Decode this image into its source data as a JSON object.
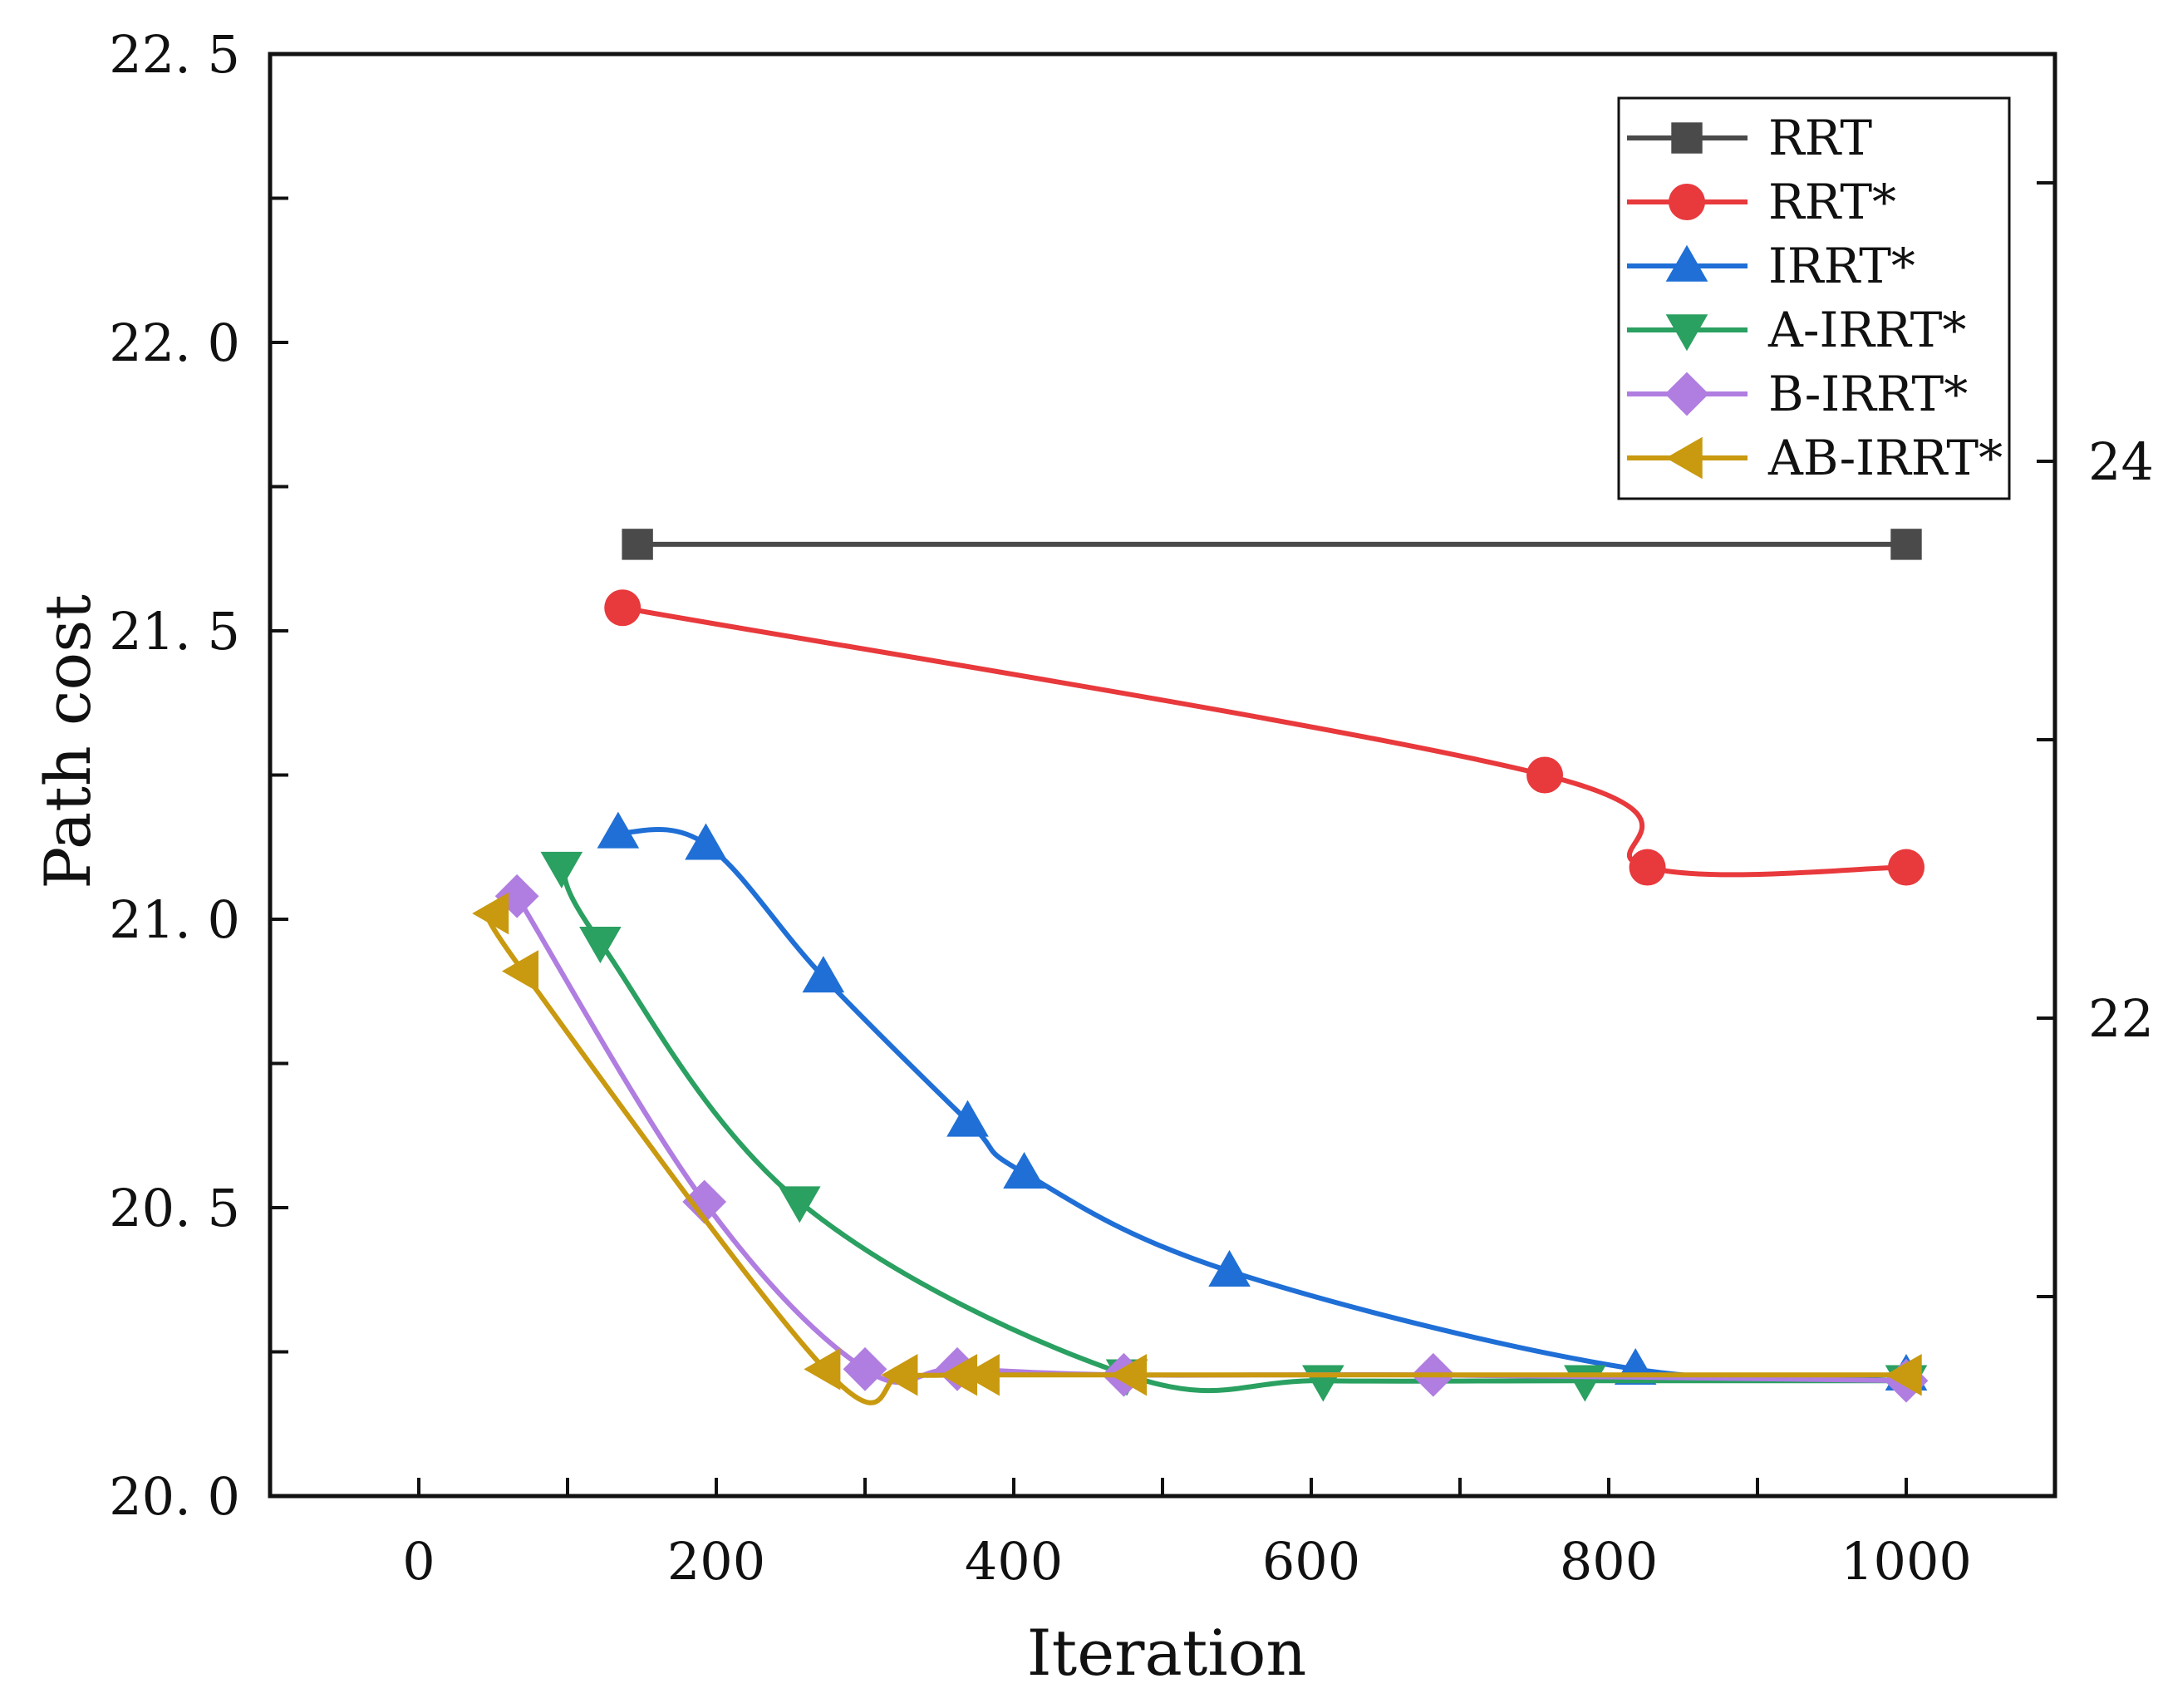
{
  "chart_data": {
    "type": "line",
    "xlabel": "Iteration",
    "ylabel": "Path cost",
    "xlim": [
      -100,
      1100
    ],
    "ylim": [
      20.0,
      22.5
    ],
    "xticks": [
      0,
      200,
      400,
      600,
      800,
      1000
    ],
    "xtick_labels": [
      "0",
      "200",
      "400",
      "600",
      "800",
      "1000"
    ],
    "yticks": [
      20.0,
      20.5,
      21.0,
      21.5,
      22.0,
      22.5
    ],
    "ytick_labels": [
      "20. 0",
      "20. 5",
      "21. 0",
      "21. 5",
      "22. 0",
      "22. 5"
    ],
    "right_axis": {
      "yticks": [
        22,
        24
      ],
      "ytick_labels": [
        "22",
        "24"
      ]
    },
    "grid": false,
    "legend_position": "top-right",
    "series": [
      {
        "name": "RRT",
        "color": "#4a4a4a",
        "marker": "square",
        "x": [
          147,
          1000
        ],
        "y": [
          21.65,
          21.65
        ]
      },
      {
        "name": "RRT*",
        "color": "#e8393c",
        "marker": "circle",
        "x": [
          137,
          757,
          826,
          1000
        ],
        "y": [
          21.54,
          21.25,
          21.09,
          21.09
        ]
      },
      {
        "name": "IRRT*",
        "color": "#1f6fd6",
        "marker": "triangle-up",
        "x": [
          134,
          193,
          272,
          369,
          407,
          545,
          818,
          1000
        ],
        "y": [
          21.15,
          21.13,
          20.9,
          20.65,
          20.56,
          20.39,
          20.22,
          20.21
        ]
      },
      {
        "name": "A-IRRT*",
        "color": "#2aa061",
        "marker": "triangle-down",
        "x": [
          96,
          122,
          256,
          476,
          608,
          784,
          1000
        ],
        "y": [
          21.09,
          20.96,
          20.51,
          20.21,
          20.2,
          20.2,
          20.2
        ]
      },
      {
        "name": "B-IRRT*",
        "color": "#b07de0",
        "marker": "diamond",
        "x": [
          66,
          192,
          300,
          362,
          474,
          682,
          1000
        ],
        "y": [
          21.04,
          20.51,
          20.22,
          20.22,
          20.21,
          20.21,
          20.2
        ]
      },
      {
        "name": "AB-IRRT*",
        "color": "#c9990f",
        "marker": "triangle-left",
        "x": [
          50,
          70,
          273,
          325,
          365,
          380,
          479,
          1000
        ],
        "y": [
          21.01,
          20.91,
          20.22,
          20.21,
          20.21,
          20.21,
          20.21,
          20.21
        ]
      }
    ]
  }
}
